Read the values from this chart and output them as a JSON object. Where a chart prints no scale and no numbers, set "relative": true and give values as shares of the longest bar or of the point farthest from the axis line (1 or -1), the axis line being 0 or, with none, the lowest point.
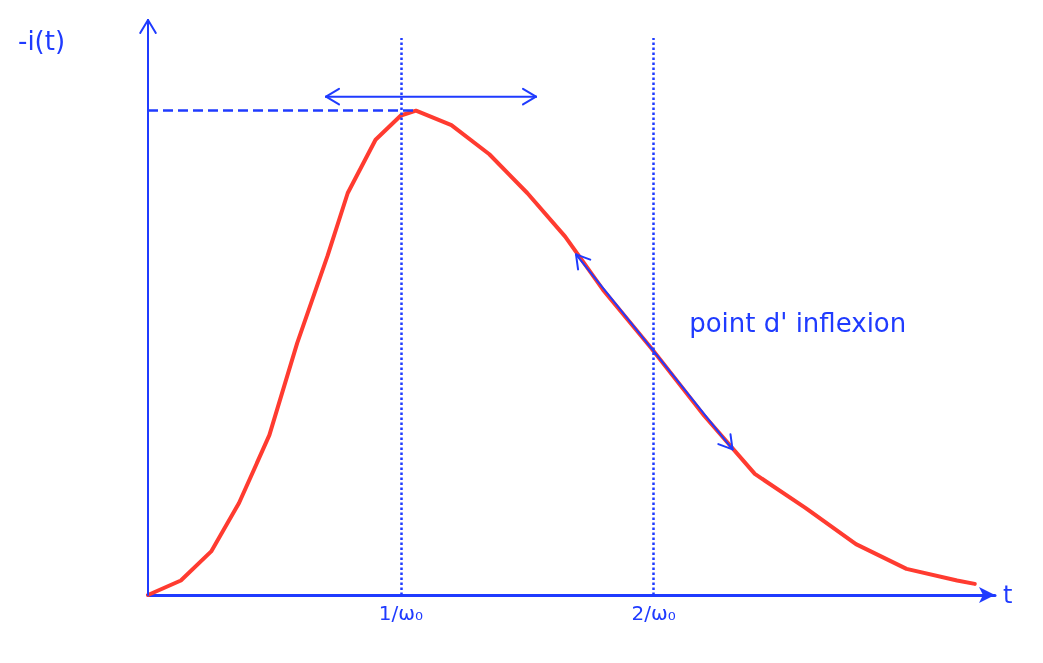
{
  "chart_data": {
    "type": "line",
    "relative": true,
    "xlabel": "t",
    "ylabel": "-i(t)",
    "x": [
      0,
      0.13,
      0.25,
      0.36,
      0.48,
      0.59,
      0.71,
      0.79,
      0.9,
      1.0,
      1.06,
      1.2,
      1.35,
      1.5,
      1.65,
      1.8,
      1.99,
      2.2,
      2.4,
      2.6,
      2.8,
      3.0,
      3.2,
      3.27
    ],
    "series": [
      {
        "color": "#ff3b30",
        "values": [
          0,
          0.03,
          0.09,
          0.19,
          0.33,
          0.52,
          0.7,
          0.83,
          0.94,
          0.99,
          1.0,
          0.97,
          0.91,
          0.83,
          0.74,
          0.63,
          0.51,
          0.37,
          0.25,
          0.18,
          0.105,
          0.054,
          0.03,
          0.023
        ]
      }
    ],
    "xlim": [
      0,
      3.35
    ],
    "xticks": [
      {
        "value": 1,
        "label": "1/ω₀"
      },
      {
        "value": 2,
        "label": "2/ω₀"
      }
    ],
    "tick_labels": "x",
    "grid": false,
    "marker": "none",
    "line_style": "solid",
    "ref_lines": [
      {
        "axis": "x",
        "value": 1,
        "label": null,
        "color": "#1f3bff",
        "line_style": "dotted"
      },
      {
        "axis": "x",
        "value": 2,
        "label": null,
        "color": "#1f3bff",
        "line_style": "dotted"
      },
      {
        "axis": "y",
        "value": 1,
        "label": null,
        "color": "#1f3bff",
        "line_style": "dashed"
      }
    ],
    "annotations": [
      {
        "text": "point d' inflexion",
        "x": 1.99,
        "y": 0.51
      }
    ]
  }
}
